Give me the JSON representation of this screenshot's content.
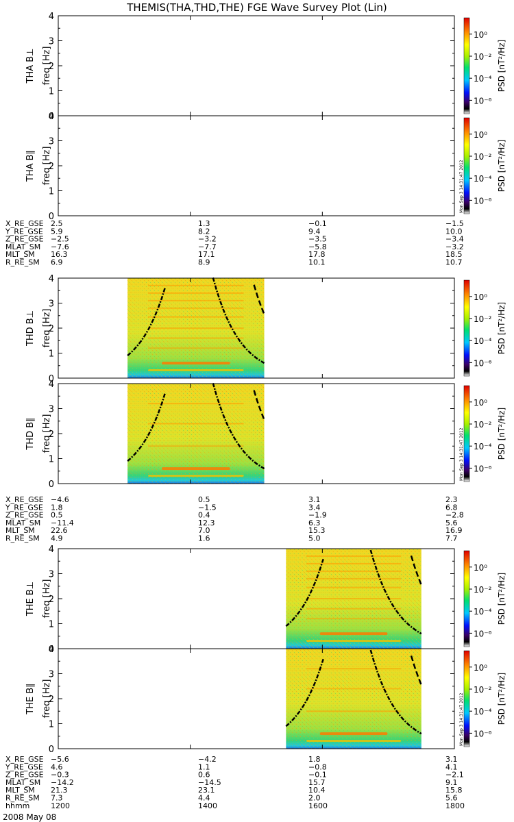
{
  "title": "THEMIS(THA,THD,THE) FGE Wave Survey Plot (Lin)",
  "freq_label": "freq [Hz]",
  "freq_ticks": [
    0,
    1,
    2,
    3,
    4
  ],
  "colorbar": {
    "label": "PSD [nT²/Hz]",
    "ticks": [
      "10⁰",
      "10⁻²",
      "10⁻⁴",
      "10⁻⁶"
    ]
  },
  "timestamp": "Mon Sep 3 14:31:47 2012",
  "date": "2008 May 08",
  "colors": {
    "background": "#eedc18",
    "spectrogram_base": "#e9df1e",
    "band": "#ff9a00",
    "low_freq": "#2ecf6a",
    "axis": "#000000"
  },
  "chart_data": [
    {
      "type": "heatmap",
      "panel": "THA B⊥",
      "ylabel": "THA B⊥",
      "ylim": [
        0,
        4
      ],
      "xlim": [
        1200,
        1800
      ],
      "data_interval": null
    },
    {
      "type": "heatmap",
      "panel": "THA B∥",
      "ylabel": "THA B∥",
      "ylim": [
        0,
        4
      ],
      "xlim": [
        1200,
        1800
      ],
      "data_interval": null
    },
    {
      "type": "heatmap",
      "panel": "THD B⊥",
      "ylabel": "THD B⊥",
      "ylim": [
        0,
        4
      ],
      "xlim": [
        1200,
        1800
      ],
      "data_interval": [
        1305,
        1512
      ]
    },
    {
      "type": "heatmap",
      "panel": "THD B∥",
      "ylabel": "THD B∥",
      "ylim": [
        0,
        4
      ],
      "xlim": [
        1200,
        1800
      ],
      "data_interval": [
        1305,
        1512
      ]
    },
    {
      "type": "heatmap",
      "panel": "THE B⊥",
      "ylabel": "THE B⊥",
      "ylim": [
        0,
        4
      ],
      "xlim": [
        1200,
        1800
      ],
      "data_interval": [
        1545,
        1750
      ]
    },
    {
      "type": "heatmap",
      "panel": "THE B∥",
      "ylabel": "THE B∥",
      "ylim": [
        0,
        4
      ],
      "xlim": [
        1200,
        1800
      ],
      "data_interval": [
        1545,
        1750
      ]
    }
  ],
  "ephem_blocks": [
    {
      "rows": [
        {
          "label": "X_RE_GSE",
          "values": [
            "2.5",
            "1.3",
            "−0.1",
            "−1.5"
          ]
        },
        {
          "label": "Y_RE_GSE",
          "values": [
            "5.9",
            "8.2",
            "9.4",
            "10.0"
          ]
        },
        {
          "label": "Z_RE_GSE",
          "values": [
            "−2.5",
            "−3.2",
            "−3.5",
            "−3.4"
          ]
        },
        {
          "label": "MLAT_SM",
          "values": [
            "−7.6",
            "−7.7",
            "−5.8",
            "−3.2"
          ]
        },
        {
          "label": "MLT_SM",
          "values": [
            "16.3",
            "17.1",
            "17.8",
            "18.5"
          ]
        },
        {
          "label": "R_RE_SM",
          "values": [
            "6.9",
            "8.9",
            "10.1",
            "10.7"
          ]
        }
      ]
    },
    {
      "rows": [
        {
          "label": "X_RE_GSE",
          "values": [
            "−4.6",
            "0.5",
            "3.1",
            "2.3"
          ]
        },
        {
          "label": "Y_RE_GSE",
          "values": [
            "1.8",
            "−1.5",
            "3.4",
            "6.8"
          ]
        },
        {
          "label": "Z_RE_GSE",
          "values": [
            "0.5",
            "0.4",
            "−1.9",
            "−2.8"
          ]
        },
        {
          "label": "MLAT_SM",
          "values": [
            "−11.4",
            "12.3",
            "6.3",
            "5.6"
          ]
        },
        {
          "label": "MLT_SM",
          "values": [
            "22.6",
            "7.0",
            "15.3",
            "16.9"
          ]
        },
        {
          "label": "R_RE_SM",
          "values": [
            "4.9",
            "1.6",
            "5.0",
            "7.7"
          ]
        }
      ]
    },
    {
      "rows": [
        {
          "label": "X_RE_GSE",
          "values": [
            "−5.6",
            "−4.2",
            "1.8",
            "3.1"
          ]
        },
        {
          "label": "Y_RE_GSE",
          "values": [
            "4.6",
            "1.1",
            "−0.8",
            "4.1"
          ]
        },
        {
          "label": "Z_RE_GSE",
          "values": [
            "−0.3",
            "0.6",
            "−0.1",
            "−2.1"
          ]
        },
        {
          "label": "MLAT_SM",
          "values": [
            "−14.2",
            "−14.5",
            "15.7",
            "9.1"
          ]
        },
        {
          "label": "MLT_SM",
          "values": [
            "21.3",
            "23.1",
            "10.4",
            "15.8"
          ]
        },
        {
          "label": "R_RE_SM",
          "values": [
            "7.3",
            "4.4",
            "2.0",
            "5.6"
          ]
        },
        {
          "label": "hhmm",
          "values": [
            "1200",
            "1400",
            "1600",
            "1800"
          ]
        }
      ]
    }
  ]
}
